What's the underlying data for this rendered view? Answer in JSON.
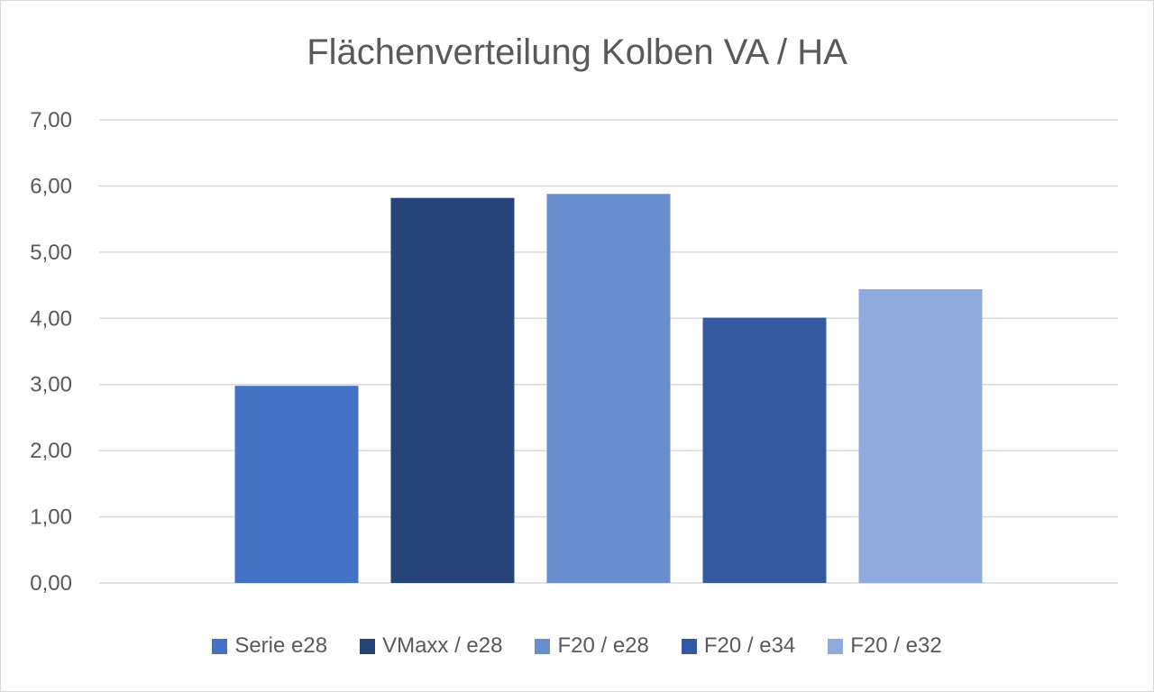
{
  "chart_data": {
    "type": "bar",
    "title": "Flächenverteilung Kolben VA / HA",
    "xlabel": "",
    "ylabel": "",
    "ylim": [
      0,
      7
    ],
    "yticks": [
      "0,00",
      "1,00",
      "2,00",
      "3,00",
      "4,00",
      "5,00",
      "6,00",
      "7,00"
    ],
    "grid": true,
    "legend_position": "bottom",
    "series": [
      {
        "name": "Serie e28",
        "value": 2.98,
        "color": "#4472c4"
      },
      {
        "name": "VMaxx / e28",
        "value": 5.82,
        "color": "#264478"
      },
      {
        "name": "F20 / e28",
        "value": 5.88,
        "color": "#698ed0"
      },
      {
        "name": "F20 / e34",
        "value": 4.01,
        "color": "#335aa1"
      },
      {
        "name": "F20 / e32",
        "value": 4.44,
        "color": "#8faadc"
      }
    ]
  }
}
